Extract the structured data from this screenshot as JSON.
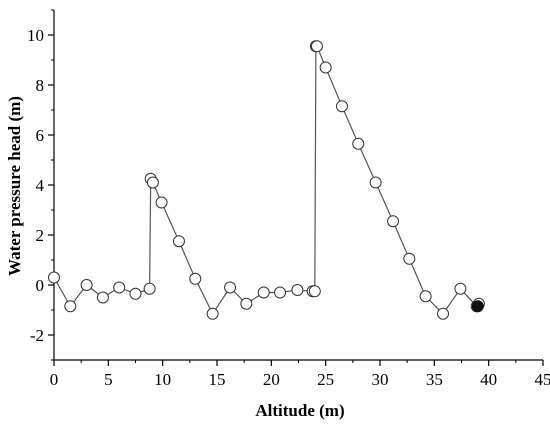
{
  "chart_data": {
    "type": "line",
    "title": "",
    "xlabel": "Altitude (m)",
    "ylabel": "Water pressure head (m)",
    "xlim": [
      0,
      45
    ],
    "ylim": [
      -3,
      11
    ],
    "xticks": [
      0,
      5,
      10,
      15,
      20,
      25,
      30,
      35,
      40,
      45
    ],
    "yticks": [
      -2,
      0,
      2,
      4,
      6,
      8,
      10
    ],
    "grid": false,
    "legend": "none",
    "marker": "open-circle",
    "line_color": "#555555",
    "series": [
      {
        "x": [
          0,
          1.5,
          3.0,
          4.5,
          6.0,
          7.5,
          8.8,
          8.9,
          9.1,
          9.9,
          11.5,
          13.0,
          14.6,
          16.2,
          17.7,
          19.3,
          20.8,
          22.4,
          23.8,
          24.0,
          24.1,
          24.2,
          25.0,
          26.5,
          28.0,
          29.6,
          31.2,
          32.7,
          34.2,
          35.8,
          37.4,
          38.9,
          39.1
        ],
        "y": [
          0.3,
          -0.85,
          0.0,
          -0.5,
          -0.1,
          -0.35,
          -0.15,
          4.25,
          4.1,
          3.3,
          1.75,
          0.25,
          -1.15,
          -0.1,
          -0.75,
          -0.3,
          -0.3,
          -0.2,
          -0.25,
          -0.25,
          9.55,
          9.55,
          8.7,
          7.15,
          5.65,
          4.1,
          2.55,
          1.05,
          -0.45,
          -1.15,
          -0.15,
          -0.85,
          -0.75
        ]
      }
    ],
    "highlighted_point": {
      "x": 39.0,
      "y": -0.85
    }
  }
}
